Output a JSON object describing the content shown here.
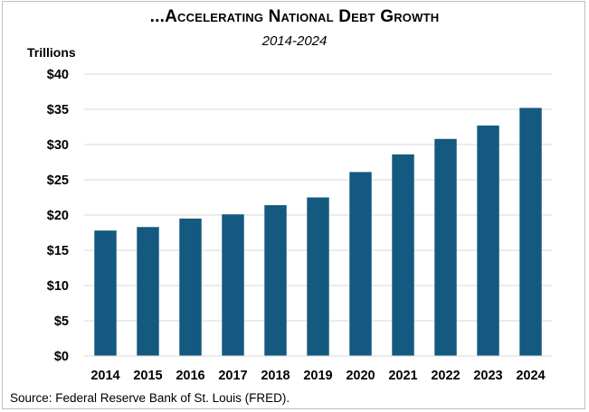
{
  "chart_data": {
    "type": "bar",
    "title": "...Accelerating National Debt Growth",
    "subtitle": "2014-2024",
    "ylabel": "Trillions",
    "xlabel": "",
    "categories": [
      "2014",
      "2015",
      "2016",
      "2017",
      "2018",
      "2019",
      "2020",
      "2021",
      "2022",
      "2023",
      "2024"
    ],
    "values": [
      17.8,
      18.3,
      19.5,
      20.1,
      21.4,
      22.5,
      26.1,
      28.6,
      30.8,
      32.7,
      35.2
    ],
    "ylim": [
      0,
      40
    ],
    "yticks": [
      0,
      5,
      10,
      15,
      20,
      25,
      30,
      35,
      40
    ],
    "ytick_labels": [
      "$0",
      "$5",
      "$10",
      "$15",
      "$20",
      "$25",
      "$30",
      "$35",
      "$40"
    ],
    "grid": true,
    "legend": "none",
    "bar_color": "#14597f",
    "grid_color": "#d9d9d9"
  },
  "source": "Source: Federal Reserve Bank of St. Louis (FRED)."
}
